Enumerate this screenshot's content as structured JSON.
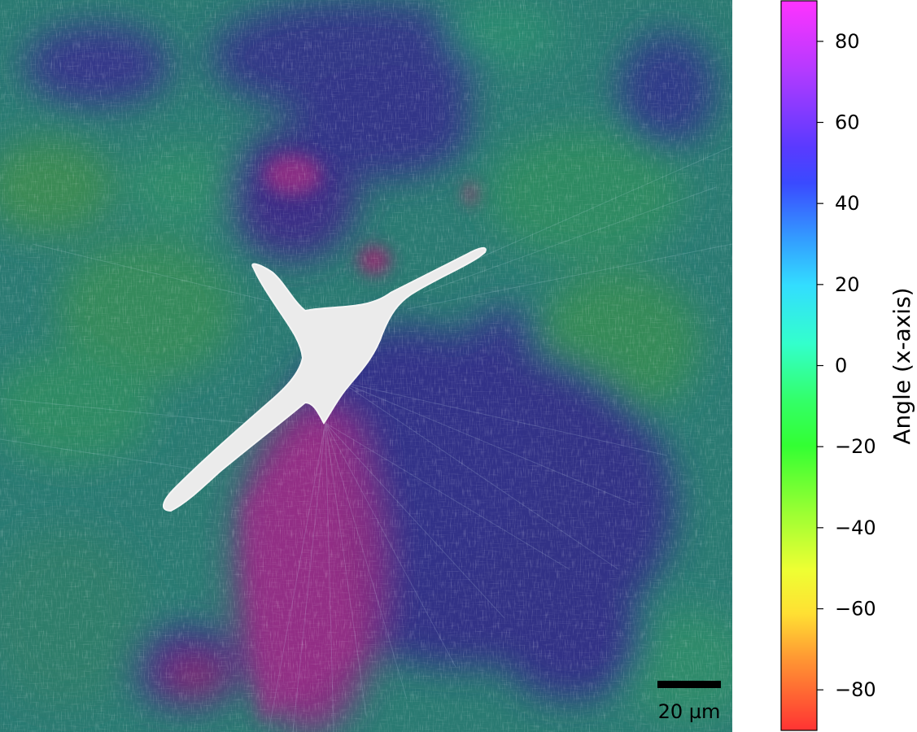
{
  "image": {
    "subject": "fluorescence micrograph with fiber-orientation overlay"
  },
  "scale_bar": {
    "label": "20 µm",
    "color": "#000000"
  },
  "colorbar": {
    "label": "Angle (x-axis)",
    "ticks": [
      "80",
      "60",
      "40",
      "20",
      "0",
      "−20",
      "−40",
      "−60",
      "−80"
    ],
    "tick_values": [
      80,
      60,
      40,
      20,
      0,
      -20,
      -40,
      -60,
      -80
    ],
    "range": [
      -90,
      90
    ],
    "colormap": "hsv",
    "colors": {
      "90": "#ff33ff",
      "60": "#5a3aff",
      "40": "#3a5aff",
      "20": "#33ddff",
      "0": "#33ffbb",
      "-20": "#33ff33",
      "-40": "#bbff33",
      "-60": "#ffff33",
      "-80": "#ff7a33",
      "-90": "#ff3333"
    }
  }
}
